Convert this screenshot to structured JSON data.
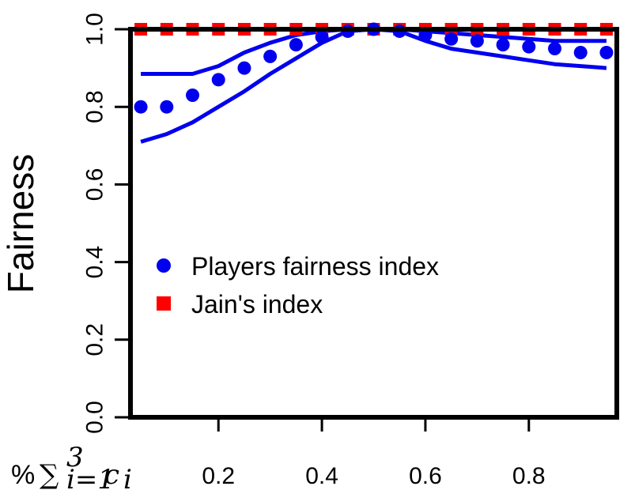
{
  "chart_data": {
    "type": "line",
    "xlabel": "% ∑ c",
    "xlabel_parts": {
      "prefix": "%",
      "symbol": "∑",
      "upper": "3",
      "lower": "i=1",
      "var": "c",
      "sub": "i"
    },
    "ylabel": "Fairness",
    "xlim": [
      0.03,
      0.97
    ],
    "ylim": [
      0.0,
      1.0
    ],
    "xticks": [
      0.2,
      0.4,
      0.6,
      0.8
    ],
    "yticks": [
      0.0,
      0.2,
      0.4,
      0.6,
      0.8,
      1.0
    ],
    "xtick_labels": [
      "0.2",
      "0.4",
      "0.6",
      "0.8"
    ],
    "ytick_labels": [
      "0.0",
      "0.2",
      "0.4",
      "0.6",
      "0.8",
      "1.0"
    ],
    "grid": false,
    "legend_position": "center-left",
    "colors": {
      "players": "#0000ee",
      "jain": "#ff0000"
    },
    "series": [
      {
        "name": "Players fairness index",
        "style": "points",
        "x": [
          0.05,
          0.1,
          0.15,
          0.2,
          0.25,
          0.3,
          0.35,
          0.4,
          0.45,
          0.5,
          0.55,
          0.6,
          0.65,
          0.7,
          0.75,
          0.8,
          0.85,
          0.9,
          0.95
        ],
        "y": [
          0.8,
          0.8,
          0.83,
          0.87,
          0.9,
          0.93,
          0.96,
          0.98,
          0.995,
          1.0,
          0.995,
          0.985,
          0.975,
          0.97,
          0.96,
          0.955,
          0.95,
          0.94,
          0.94
        ]
      },
      {
        "name": "",
        "role": "upper bound",
        "style": "line",
        "x": [
          0.05,
          0.1,
          0.15,
          0.2,
          0.25,
          0.3,
          0.35,
          0.4,
          0.45,
          0.5,
          0.55,
          0.6,
          0.65,
          0.7,
          0.75,
          0.8,
          0.85,
          0.9,
          0.95
        ],
        "y": [
          0.885,
          0.885,
          0.885,
          0.905,
          0.94,
          0.965,
          0.985,
          0.995,
          1.0,
          1.0,
          1.0,
          0.995,
          0.99,
          0.985,
          0.98,
          0.975,
          0.97,
          0.97,
          0.97
        ]
      },
      {
        "name": "",
        "role": "lower bound",
        "style": "line",
        "x": [
          0.05,
          0.1,
          0.15,
          0.2,
          0.25,
          0.3,
          0.35,
          0.4,
          0.45,
          0.5,
          0.55,
          0.6,
          0.65,
          0.7,
          0.75,
          0.8,
          0.85,
          0.9,
          0.95
        ],
        "y": [
          0.71,
          0.73,
          0.76,
          0.8,
          0.84,
          0.885,
          0.925,
          0.965,
          0.995,
          1.0,
          0.995,
          0.97,
          0.95,
          0.94,
          0.93,
          0.92,
          0.91,
          0.905,
          0.9
        ]
      },
      {
        "name": "Jain's index",
        "style": "points-line",
        "x": [
          0.05,
          0.1,
          0.15,
          0.2,
          0.25,
          0.3,
          0.35,
          0.4,
          0.45,
          0.5,
          0.55,
          0.6,
          0.65,
          0.7,
          0.75,
          0.8,
          0.85,
          0.9,
          0.95
        ],
        "y": [
          1.0,
          1.0,
          1.0,
          1.0,
          1.0,
          1.0,
          1.0,
          1.0,
          1.0,
          1.0,
          1.0,
          1.0,
          1.0,
          1.0,
          1.0,
          1.0,
          1.0,
          1.0,
          1.0
        ]
      }
    ],
    "legend": [
      {
        "label": "Players fairness index",
        "marker": "circle",
        "color": "#0000ee"
      },
      {
        "label": "Jain's index",
        "marker": "square",
        "color": "#ff0000"
      }
    ]
  }
}
